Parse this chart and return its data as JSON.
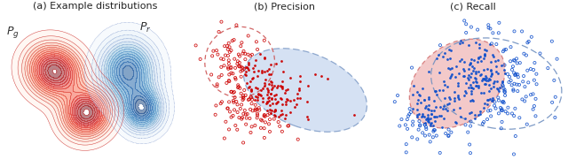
{
  "fig_width": 6.4,
  "fig_height": 1.89,
  "dpi": 100,
  "bg_color": "#ffffff",
  "panel_a": {
    "title": "(a) Example distributions",
    "Pg_label": "$P_g$",
    "Pr_label": "$P_r$"
  },
  "panel_b": {
    "title": "(b) Precision",
    "real_color": "#c8d8f0",
    "real_edge": "#7090c0",
    "gen_edge": "#cc5555",
    "dot_fill": "#cc0000",
    "dot_edge": "#cc0000"
  },
  "panel_c": {
    "title": "(c) Recall",
    "real_color": "#f0b8b8",
    "real_edge": "#cc6060",
    "gen_edge": "#7090c0",
    "dot_fill": "#1050cc",
    "dot_edge": "#1050cc"
  },
  "caption_fontsize": 8.0,
  "label_fontsize": 9,
  "seed": 42
}
